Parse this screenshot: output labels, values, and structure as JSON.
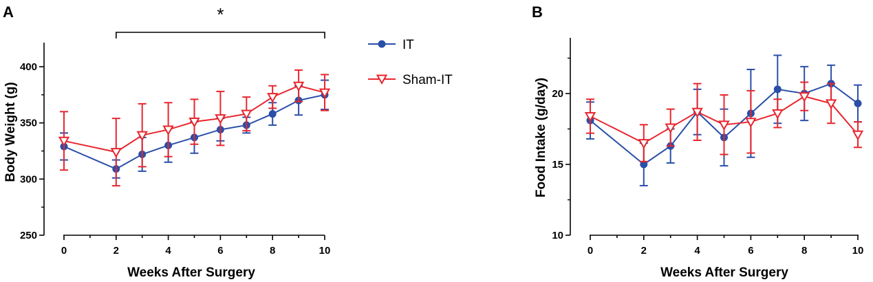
{
  "colors": {
    "it": "#2a4fa8",
    "sham": "#e8262e",
    "axis": "#000000"
  },
  "legend": [
    {
      "name": "IT",
      "marker": "filled-circle-icon"
    },
    {
      "name": "Sham-IT",
      "marker": "open-triangle-down-icon"
    }
  ],
  "chart_data": [
    {
      "panel": "A",
      "type": "line",
      "title": "",
      "xlabel": "Weeks After Surgery",
      "ylabel": "Body Weight (g)",
      "xlim": [
        0,
        10
      ],
      "ylim": [
        250,
        420
      ],
      "xticks": [
        0,
        2,
        4,
        6,
        8,
        10
      ],
      "yticks": [
        250,
        300,
        350,
        400
      ],
      "significance": {
        "label": "*",
        "from_x": 2,
        "to_x": 10
      },
      "series": [
        {
          "name": "IT",
          "x": [
            0,
            2,
            3,
            4,
            5,
            6,
            7,
            8,
            9,
            10
          ],
          "values": [
            329,
            309,
            322,
            330,
            337,
            344,
            348,
            358,
            370,
            375
          ],
          "error": [
            12,
            8,
            15,
            15,
            14,
            10,
            7,
            10,
            13,
            13
          ]
        },
        {
          "name": "Sham-IT",
          "x": [
            0,
            2,
            3,
            4,
            5,
            6,
            7,
            8,
            9,
            10
          ],
          "values": [
            334,
            324,
            339,
            344,
            351,
            354,
            358,
            373,
            383,
            377
          ],
          "error": [
            26,
            30,
            28,
            24,
            20,
            24,
            15,
            10,
            14,
            16
          ]
        }
      ]
    },
    {
      "panel": "B",
      "type": "line",
      "title": "",
      "xlabel": "Weeks After Surgery",
      "ylabel": "Food Intake (g/day)",
      "xlim": [
        0,
        10
      ],
      "ylim": [
        10,
        23.5
      ],
      "xticks": [
        0,
        2,
        4,
        6,
        8,
        10
      ],
      "yticks": [
        10,
        15,
        20
      ],
      "series": [
        {
          "name": "IT",
          "x": [
            0,
            2,
            3,
            4,
            5,
            6,
            7,
            8,
            9,
            10
          ],
          "values": [
            18.1,
            15.0,
            16.3,
            18.7,
            16.9,
            18.6,
            20.3,
            20.0,
            20.7,
            19.3
          ],
          "error": [
            1.3,
            1.5,
            1.2,
            1.6,
            2.0,
            3.1,
            2.4,
            1.9,
            1.3,
            1.3
          ]
        },
        {
          "name": "Sham-IT",
          "x": [
            0,
            2,
            3,
            4,
            5,
            6,
            7,
            8,
            9,
            10
          ],
          "values": [
            18.4,
            16.5,
            17.6,
            18.7,
            17.8,
            18.0,
            18.6,
            19.8,
            19.3,
            17.1
          ],
          "error": [
            1.2,
            1.3,
            1.3,
            2.0,
            2.1,
            2.2,
            1.0,
            1.0,
            1.4,
            0.9
          ]
        }
      ]
    }
  ]
}
